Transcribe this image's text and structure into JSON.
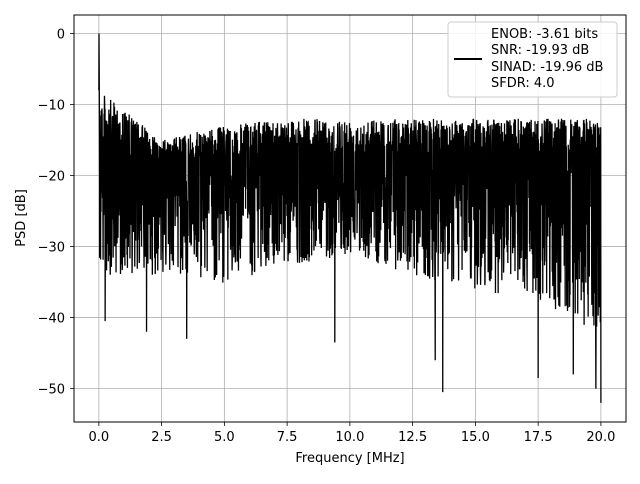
{
  "chart_data": {
    "type": "line",
    "title": "",
    "xlabel": "Frequency [MHz]",
    "ylabel": "PSD [dB]",
    "xlim": [
      -0.99,
      21.0
    ],
    "ylim": [
      -54.7,
      2.6
    ],
    "grid": true,
    "legend_position": "top-right",
    "x_ticks": [
      0.0,
      2.5,
      5.0,
      7.5,
      10.0,
      12.5,
      15.0,
      17.5,
      20.0
    ],
    "x_tick_labels": [
      "0.0",
      "2.5",
      "5.0",
      "7.5",
      "10.0",
      "12.5",
      "15.0",
      "17.5",
      "20.0"
    ],
    "y_ticks": [
      0,
      -10,
      -20,
      -30,
      -40,
      -50
    ],
    "y_tick_labels": [
      "0",
      "−10",
      "−20",
      "−30",
      "−40",
      "−50"
    ],
    "legend_lines": [
      "ENOB: -3.61 bits",
      "SNR: -19.93 dB",
      "SINAD: -19.96 dB",
      "SFDR: 4.0"
    ],
    "series_color": "#000000",
    "series": [
      {
        "x_start": 0.0,
        "x_end": 20.0,
        "peak": {
          "x": 0.0,
          "y": 0.0
        },
        "noise_floor_mean": -20,
        "values_envelope": {
          "upper": [
            -8,
            -15,
            -13,
            -12,
            -12,
            -12,
            -12,
            -12,
            -12
          ],
          "lower": [
            -40,
            -40,
            -42,
            -38,
            -36,
            -40,
            -43,
            -45,
            -52
          ]
        },
        "notable_dips": [
          {
            "x": 0.25,
            "y": -40.5
          },
          {
            "x": 1.9,
            "y": -42.0
          },
          {
            "x": 3.5,
            "y": -43.0
          },
          {
            "x": 9.4,
            "y": -43.5
          },
          {
            "x": 13.4,
            "y": -46.0
          },
          {
            "x": 13.7,
            "y": -50.5
          },
          {
            "x": 17.5,
            "y": -48.5
          },
          {
            "x": 18.9,
            "y": -48.0
          },
          {
            "x": 19.8,
            "y": -50.0
          },
          {
            "x": 20.0,
            "y": -52.0
          }
        ]
      }
    ]
  }
}
